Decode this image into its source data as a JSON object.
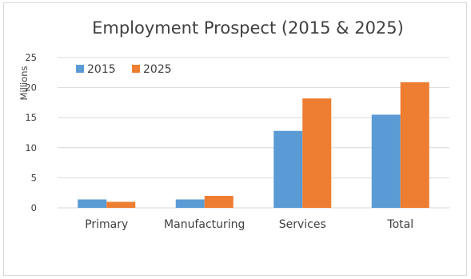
{
  "chart_data": {
    "type": "bar",
    "title": "Employment Prospect (2015 & 2025)",
    "xlabel": "",
    "ylabel": "Millions",
    "categories": [
      "Primary",
      "Manufacturing",
      "Services",
      "Total"
    ],
    "series": [
      {
        "name": "2015",
        "color": "#5b9bd5",
        "values": [
          1.4,
          1.4,
          12.8,
          15.5
        ]
      },
      {
        "name": "2025",
        "color": "#ed7d31",
        "values": [
          1.0,
          2.0,
          18.2,
          20.9
        ]
      }
    ],
    "ylim": [
      0,
      25
    ],
    "yticks": [
      "0",
      "5",
      "10",
      "15",
      "20",
      "25"
    ],
    "grid": true,
    "legend_position": "top-left"
  }
}
